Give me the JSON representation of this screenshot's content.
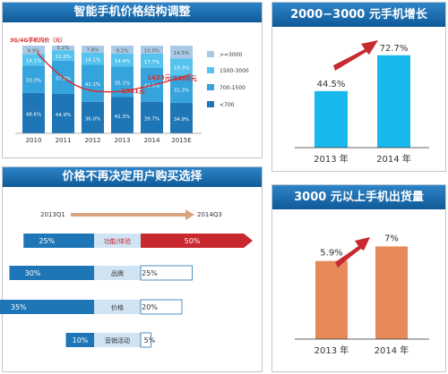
{
  "colors": {
    "header": "#1b6fb3",
    "c1": "#a9c9e6",
    "c2": "#55c3ee",
    "c3": "#35a3dc",
    "c4": "#1e76b6",
    "line": "#d62f2f",
    "red": "#c8292f",
    "cyan": "#18b8ec",
    "orange": "#e68a5a",
    "arrowBand": "#d9a382"
  },
  "chart_data": [
    {
      "type": "bar",
      "title": "智能手机价格结构调整",
      "categories": [
        "2010",
        "2011",
        "2012",
        "2013",
        "2014",
        "2015E"
      ],
      "series": [
        {
          "name": ">=3000",
          "values": [
            9.9,
            5.2,
            7.8,
            9.2,
            10.0,
            14.5
          ],
          "labels": [
            "9.9%",
            "5.2%",
            "7.8%",
            "9.2%",
            "10.0%",
            "14.5%"
          ]
        },
        {
          "name": "1500-3000",
          "values": [
            14.1,
            12.0,
            14.1,
            14.4,
            17.7,
            19.3
          ],
          "labels": [
            "14.1%",
            "12.0%",
            "14.1%",
            "14.4%",
            "17.7%",
            "19.3%"
          ]
        },
        {
          "name": "700-1500",
          "values": [
            33.0,
            37.8,
            42.1,
            35.1,
            42.6,
            31.3
          ],
          "labels": [
            "33.0%",
            "37.8%",
            "42.1%",
            "35.1%",
            "42.6%",
            "31.3%"
          ]
        },
        {
          "name": "<700",
          "values": [
            48.6,
            44.9,
            36.0,
            41.3,
            39.7,
            34.9
          ],
          "labels": [
            "48.6%",
            "44.9%",
            "36.0%",
            "41.3%",
            "39.7%",
            "34.9%"
          ]
        }
      ],
      "line_label": "3G/4G手机均价（元）",
      "line_points": [
        {
          "x": "2013",
          "label": "1361元",
          "value": 1361
        },
        {
          "x": "2014",
          "label": "1423元",
          "value": 1423
        },
        {
          "x": "2015E",
          "label": "1480元",
          "value": 1480
        }
      ]
    },
    {
      "type": "bar",
      "title": "2000−3000 元手机增长",
      "categories": [
        "2013 年",
        "2014 年"
      ],
      "values": [
        44.5,
        72.7
      ],
      "labels": [
        "44.5%",
        "72.7%"
      ]
    },
    {
      "type": "bar",
      "title": "价格不再决定用户购买选择",
      "from_label": "2013Q1",
      "to_label": "2014Q3",
      "categories": [
        "功能/体验",
        "品牌",
        "价格",
        "营销活动"
      ],
      "series": [
        {
          "name": "2013Q1",
          "values": [
            25,
            30,
            35,
            10
          ],
          "labels": [
            "25%",
            "30%",
            "35%",
            "10%"
          ]
        },
        {
          "name": "2014Q3",
          "values": [
            50,
            25,
            20,
            5
          ],
          "labels": [
            "50%",
            "25%",
            "20%",
            "5%"
          ]
        }
      ]
    },
    {
      "type": "bar",
      "title": "3000 元以上手机出货量",
      "categories": [
        "2013 年",
        "2014 年"
      ],
      "values": [
        5.9,
        7
      ],
      "labels": [
        "5.9%",
        "7%"
      ]
    }
  ]
}
